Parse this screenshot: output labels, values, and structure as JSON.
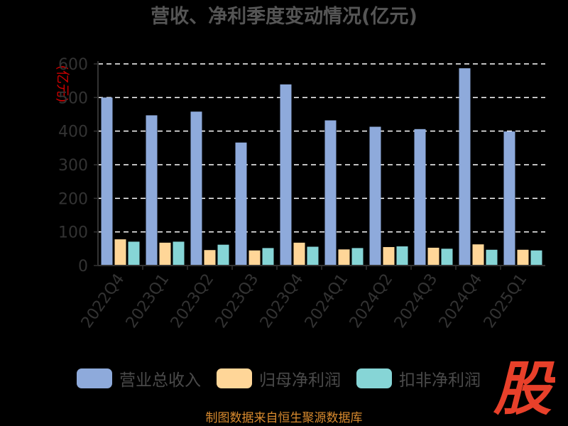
{
  "chart_data": {
    "type": "bar",
    "title": "营收、净利季度变动情况(亿元)",
    "ylabel": "(亿元)",
    "categories": [
      "2022Q4",
      "2023Q1",
      "2023Q2",
      "2023Q3",
      "2023Q4",
      "2024Q1",
      "2024Q2",
      "2024Q3",
      "2024Q4",
      "2025Q1"
    ],
    "series": [
      {
        "name": "营业总收入",
        "color": "#8eaadb",
        "values": [
          500,
          447,
          458,
          366,
          539,
          432,
          413,
          406,
          587,
          399
        ]
      },
      {
        "name": "归母净利润",
        "color": "#ffd698",
        "values": [
          78,
          68,
          46,
          45,
          68,
          48,
          55,
          53,
          63,
          47
        ]
      },
      {
        "name": "扣非净利润",
        "color": "#86d5d6",
        "values": [
          71,
          71,
          62,
          52,
          56,
          52,
          57,
          50,
          47,
          45
        ]
      }
    ],
    "ylim": [
      0,
      600
    ],
    "yticks": [
      0,
      100,
      200,
      300,
      400,
      500,
      600
    ],
    "grid": true,
    "legend_position": "bottom",
    "x_label_rotation": -55
  },
  "footer": {
    "source": "制图数据来自恒生聚源数据库",
    "logo_text": "股"
  }
}
